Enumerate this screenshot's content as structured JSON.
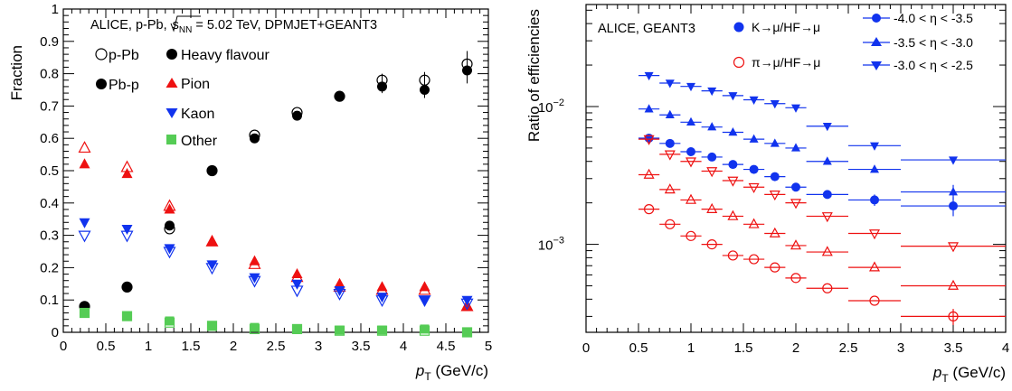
{
  "chart_data": [
    {
      "type": "scatter",
      "annotation_text": "ALICE, p-Pb, ",
      "annotation_sqrt": "s",
      "annotation_sub": "NN",
      "annotation_tail": " = 5.02 TeV, DPMJET+GEANT3",
      "ylabel": "Fraction",
      "xlabel_var": "p",
      "xlabel_sub": "T",
      "xlabel_unit": " (GeV/c)",
      "xlim": [
        0,
        5
      ],
      "ylim": [
        0,
        1
      ],
      "x_ticks": [
        "0",
        "0.5",
        "1",
        "1.5",
        "2",
        "2.5",
        "3",
        "3.5",
        "4",
        "4.5",
        "5"
      ],
      "y_ticks": [
        "0",
        "0.1",
        "0.2",
        "0.3",
        "0.4",
        "0.5",
        "0.6",
        "0.7",
        "0.8",
        "0.9",
        "1"
      ],
      "legend": [
        {
          "label": "p-Pb",
          "marker": "circle-open",
          "color": "#000000"
        },
        {
          "label": "Pb-p",
          "marker": "circle",
          "color": "#000000"
        },
        {
          "label": "Heavy flavour",
          "marker": "circle",
          "color": "#000000"
        },
        {
          "label": "Pion",
          "marker": "triangle-up",
          "color": "#ee1111"
        },
        {
          "label": "Kaon",
          "marker": "triangle-down",
          "color": "#1133ee"
        },
        {
          "label": "Other",
          "marker": "square",
          "color": "#55cc55"
        }
      ],
      "x": [
        0.25,
        0.75,
        1.25,
        1.75,
        2.25,
        2.75,
        3.25,
        3.75,
        4.25,
        4.75
      ],
      "series": [
        {
          "species": "hf",
          "system": "p-Pb",
          "marker": "circle-open",
          "color": "#000000",
          "values": [
            0.08,
            0.14,
            0.32,
            0.5,
            0.61,
            0.68,
            0.73,
            0.78,
            0.78,
            0.83
          ]
        },
        {
          "species": "hf",
          "system": "Pb-p",
          "marker": "circle",
          "color": "#000000",
          "values": [
            0.08,
            0.14,
            0.33,
            0.5,
            0.6,
            0.67,
            0.73,
            0.76,
            0.75,
            0.81
          ]
        },
        {
          "species": "pion",
          "system": "p-Pb",
          "marker": "triangle-up-open",
          "color": "#ee1111",
          "values": [
            0.57,
            0.51,
            0.39,
            0.28,
            0.21,
            0.17,
            0.14,
            0.13,
            0.13,
            0.08
          ]
        },
        {
          "species": "pion",
          "system": "Pb-p",
          "marker": "triangle-up",
          "color": "#ee1111",
          "values": [
            0.52,
            0.49,
            0.38,
            0.28,
            0.22,
            0.18,
            0.15,
            0.14,
            0.14,
            0.08
          ]
        },
        {
          "species": "kaon",
          "system": "p-Pb",
          "marker": "triangle-down-open",
          "color": "#1133ee",
          "values": [
            0.3,
            0.3,
            0.25,
            0.2,
            0.16,
            0.13,
            0.12,
            0.1,
            0.1,
            0.09
          ]
        },
        {
          "species": "kaon",
          "system": "Pb-p",
          "marker": "triangle-down",
          "color": "#1133ee",
          "values": [
            0.34,
            0.32,
            0.26,
            0.21,
            0.17,
            0.15,
            0.13,
            0.11,
            0.1,
            0.1
          ]
        },
        {
          "species": "other",
          "system": "p-Pb",
          "marker": "square-open",
          "color": "#55cc55",
          "values": [
            0.06,
            0.05,
            0.03,
            0.02,
            0.01,
            0.01,
            0.005,
            0.005,
            0.005,
            0.0
          ]
        },
        {
          "species": "other",
          "system": "Pb-p",
          "marker": "square",
          "color": "#55cc55",
          "values": [
            0.06,
            0.05,
            0.035,
            0.02,
            0.015,
            0.01,
            0.007,
            0.007,
            0.01,
            0.0
          ]
        }
      ],
      "error_bars": {
        "hf": [
          0,
          0,
          0,
          0,
          0,
          0,
          0,
          0.02,
          0.025,
          0.04
        ]
      }
    },
    {
      "type": "scatter",
      "annotation_text": "ALICE, GEANT3",
      "ylabel": "Ratio of efficiencies",
      "xlabel_var": "p",
      "xlabel_sub": "T",
      "xlabel_unit": " (GeV/c)",
      "log_y": true,
      "xlim": [
        0,
        4
      ],
      "ylim": [
        0.00023,
        0.055
      ],
      "x_ticks": [
        "0",
        "0.5",
        "1",
        "1.5",
        "2",
        "2.5",
        "3",
        "3.5",
        "4"
      ],
      "y_major_ticks": [
        {
          "value": 0.01,
          "base": "10",
          "exp": "−2"
        },
        {
          "value": 0.001,
          "base": "10",
          "exp": "−3"
        }
      ],
      "legend_species": [
        {
          "label": "K→μ/HF→μ",
          "marker": "circle",
          "color": "#1133ee"
        },
        {
          "label": "π→μ/HF→μ",
          "marker": "circle-open",
          "color": "#ee1111"
        }
      ],
      "legend_eta": [
        {
          "label": "-4.0 < η < -3.5",
          "marker": "circle",
          "color": "#1133ee"
        },
        {
          "label": "-3.5 < η < -3.0",
          "marker": "triangle-up",
          "color": "#1133ee"
        },
        {
          "label": "-3.0 < η < -2.5",
          "marker": "triangle-down",
          "color": "#1133ee"
        }
      ],
      "x": [
        0.6,
        0.8,
        1.0,
        1.2,
        1.4,
        1.6,
        1.8,
        2.0,
        2.3,
        2.75,
        3.5
      ],
      "x_halfwidth": [
        0.1,
        0.1,
        0.1,
        0.1,
        0.1,
        0.1,
        0.1,
        0.1,
        0.2,
        0.25,
        0.5
      ],
      "series": [
        {
          "species": "kaon",
          "eta": "-3.0 < η < -2.5",
          "marker": "triangle-down",
          "color": "#1133ee",
          "values": [
            0.0168,
            0.0148,
            0.014,
            0.013,
            0.012,
            0.0112,
            0.0105,
            0.0098,
            0.0072,
            0.0052,
            0.0041
          ]
        },
        {
          "species": "kaon",
          "eta": "-3.5 < η < -3.0",
          "marker": "triangle-up",
          "color": "#1133ee",
          "values": [
            0.0096,
            0.0087,
            0.0077,
            0.0071,
            0.0065,
            0.0058,
            0.0054,
            0.005,
            0.004,
            0.0035,
            0.0024
          ]
        },
        {
          "species": "kaon",
          "eta": "-4.0 < η < -3.5",
          "marker": "circle",
          "color": "#1133ee",
          "values": [
            0.0059,
            0.0054,
            0.0047,
            0.0043,
            0.0038,
            0.0035,
            0.0031,
            0.0026,
            0.0023,
            0.0021,
            0.0019
          ]
        },
        {
          "species": "pion",
          "eta": "-3.0 < η < -2.5",
          "marker": "triangle-down-open",
          "color": "#ee1111",
          "values": [
            0.0058,
            0.0045,
            0.004,
            0.0034,
            0.0029,
            0.0026,
            0.0023,
            0.002,
            0.0016,
            0.0012,
            0.00097
          ]
        },
        {
          "species": "pion",
          "eta": "-3.5 < η < -3.0",
          "marker": "triangle-up-open",
          "color": "#ee1111",
          "values": [
            0.0032,
            0.0025,
            0.0021,
            0.0018,
            0.0016,
            0.0014,
            0.0012,
            0.00098,
            0.00088,
            0.00068,
            0.0005
          ]
        },
        {
          "species": "pion",
          "eta": "-4.0 < η < -3.5",
          "marker": "circle-open",
          "color": "#ee1111",
          "values": [
            0.0018,
            0.0014,
            0.00115,
            0.001,
            0.00083,
            0.00078,
            0.00068,
            0.00057,
            0.00048,
            0.00039,
            0.0003
          ]
        }
      ],
      "error_bars": {
        "kaon-4.0": [
          0,
          0,
          0,
          0,
          0,
          0,
          0,
          0,
          0,
          0.0002,
          0.0003
        ],
        "kaon-3.5": [
          0,
          0,
          0,
          0,
          0,
          0,
          0,
          0,
          0,
          0,
          0.0003
        ],
        "pion-4.0": [
          0,
          0,
          0,
          0,
          0,
          0,
          0,
          0,
          0,
          0,
          4e-05
        ]
      }
    }
  ]
}
